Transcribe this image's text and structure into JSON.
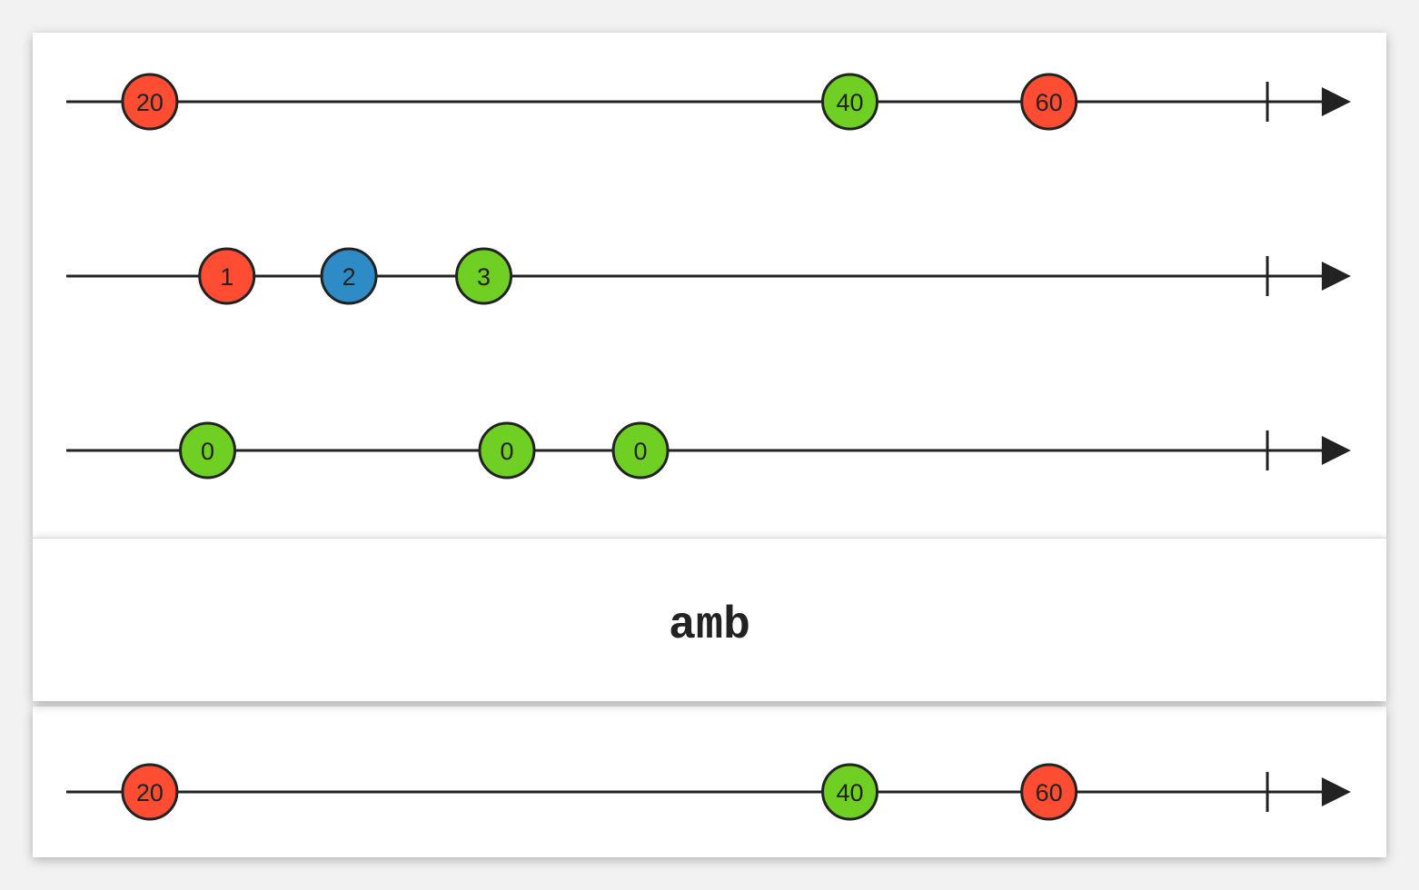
{
  "operator": {
    "label": "amb"
  },
  "colors": {
    "red": "#ff4d33",
    "green": "#6fcf22",
    "blue": "#2e8bc6",
    "stroke": "#222222"
  },
  "input_timelines": [
    {
      "marbles": [
        {
          "label": "20",
          "color": "red",
          "t": 0.065
        },
        {
          "label": "40",
          "color": "green",
          "t": 0.61
        },
        {
          "label": "60",
          "color": "red",
          "t": 0.765
        }
      ],
      "complete_at": 0.935
    },
    {
      "marbles": [
        {
          "label": "1",
          "color": "red",
          "t": 0.125
        },
        {
          "label": "2",
          "color": "blue",
          "t": 0.22
        },
        {
          "label": "3",
          "color": "green",
          "t": 0.325
        }
      ],
      "complete_at": 0.935
    },
    {
      "marbles": [
        {
          "label": "0",
          "color": "green",
          "t": 0.11
        },
        {
          "label": "0",
          "color": "green",
          "t": 0.343
        },
        {
          "label": "0",
          "color": "green",
          "t": 0.447
        }
      ],
      "complete_at": 0.935
    }
  ],
  "output_timeline": {
    "marbles": [
      {
        "label": "20",
        "color": "red",
        "t": 0.065
      },
      {
        "label": "40",
        "color": "green",
        "t": 0.61
      },
      {
        "label": "60",
        "color": "red",
        "t": 0.765
      }
    ],
    "complete_at": 0.935
  }
}
